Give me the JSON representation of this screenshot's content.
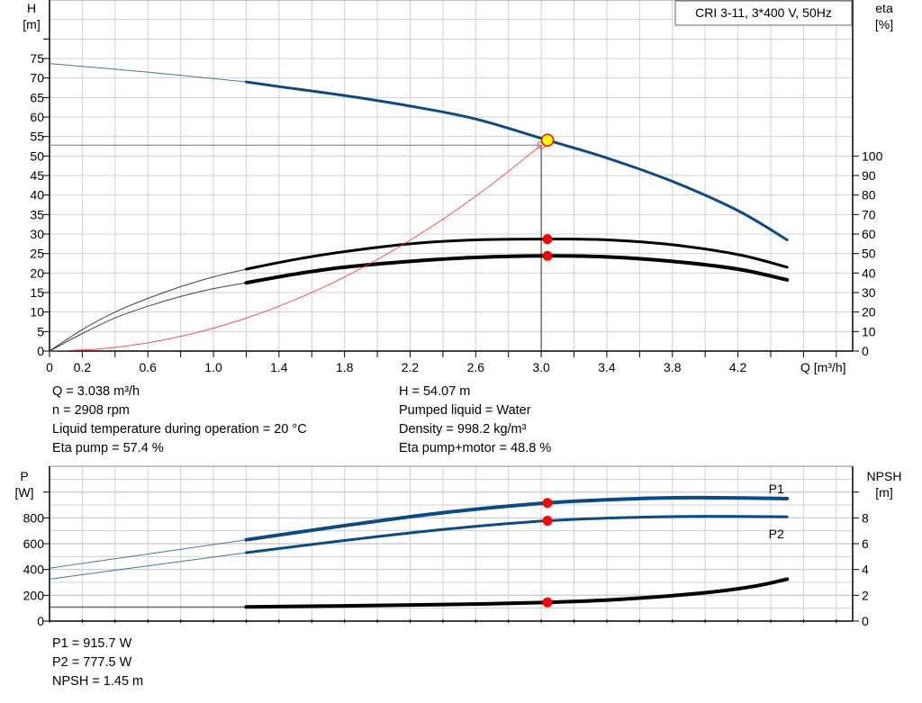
{
  "chart_data": [
    {
      "type": "line",
      "title": "CRI 3-11, 3*400 V, 50Hz",
      "xlabel": "Q [m³/h]",
      "ylabel": "H [m]",
      "ylabel_lines": [
        "H",
        "[m]"
      ],
      "y2label_lines": [
        "eta",
        "[%]"
      ],
      "xlim": [
        0,
        4.9
      ],
      "ylim": [
        0,
        90
      ],
      "y2lim": [
        0,
        180
      ],
      "grid": true,
      "x_ticks": [
        0,
        0.2,
        0.6,
        1.0,
        1.4,
        1.8,
        2.2,
        2.6,
        3.0,
        3.4,
        3.8,
        4.2
      ],
      "x_tick_labels": [
        "0",
        "0.2",
        "0.6",
        "1.0",
        "1.4",
        "1.8",
        "2.2",
        "2.6",
        "3.0",
        "3.4",
        "3.8",
        "4.2"
      ],
      "y_ticks": [
        0,
        5,
        10,
        15,
        20,
        25,
        30,
        35,
        40,
        45,
        50,
        55,
        60,
        65,
        70,
        75
      ],
      "y_tick_labels": [
        "0",
        "5",
        "10",
        "15",
        "20",
        "25",
        "30",
        "35",
        "40",
        "45",
        "50",
        "55",
        "60",
        "65",
        "70",
        "75"
      ],
      "y2_ticks": [
        0,
        10,
        20,
        30,
        40,
        50,
        60,
        70,
        80,
        90,
        100
      ],
      "y2_tick_labels": [
        "0",
        "10",
        "20",
        "30",
        "40",
        "50",
        "60",
        "70",
        "80",
        "90",
        "100"
      ],
      "series": [
        {
          "key": "head",
          "axis": "H",
          "color": "#0b4a85",
          "x": [
            0,
            0.6,
            1.2,
            1.4,
            1.8,
            2.2,
            2.6,
            3.038,
            3.4,
            3.8,
            4.2,
            4.5
          ],
          "y": [
            73.7,
            71.5,
            69.0,
            67.8,
            65.5,
            62.8,
            59.5,
            54.07,
            49.5,
            43.5,
            36.0,
            28.5
          ]
        },
        {
          "key": "eta-pump",
          "axis": "eta",
          "color": "#000000",
          "x": [
            0,
            0.2,
            0.4,
            0.6,
            0.8,
            1.0,
            1.2,
            1.5,
            1.8,
            2.2,
            2.6,
            3.038,
            3.4,
            3.8,
            4.2,
            4.5
          ],
          "y": [
            0,
            11,
            20,
            27,
            33,
            38,
            42,
            47,
            51,
            55,
            57,
            57.4,
            57,
            54.5,
            49.5,
            43
          ]
        },
        {
          "key": "eta-pump-motor",
          "axis": "eta",
          "color": "#000000",
          "x": [
            0,
            0.2,
            0.4,
            0.6,
            0.8,
            1.0,
            1.2,
            1.5,
            1.8,
            2.2,
            2.6,
            3.038,
            3.4,
            3.8,
            4.2,
            4.5
          ],
          "y": [
            0,
            9,
            17,
            23,
            28,
            32,
            35,
            39.5,
            43,
            46,
            48,
            48.8,
            48.3,
            46,
            42,
            36.5
          ]
        },
        {
          "key": "system-curve",
          "axis": "H",
          "color": "#ff3030",
          "x": [
            0,
            0.3,
            0.6,
            0.9,
            1.2,
            1.5,
            1.8,
            2.1,
            2.4,
            2.7,
            3.0
          ],
          "y": [
            0,
            0.53,
            2.11,
            4.75,
            8.45,
            13.2,
            19.0,
            25.9,
            33.8,
            42.8,
            52.8
          ]
        }
      ],
      "duty_point": {
        "Q": 3.038,
        "H": 54.07,
        "eta_pump": 57.4,
        "eta_pump_motor": 48.8
      },
      "system_end": {
        "Q": 3.0,
        "H": 52.8
      },
      "thin_until_Q": 1.2
    },
    {
      "type": "line",
      "xlim": [
        0,
        4.9
      ],
      "ylim": [
        0,
        1200
      ],
      "y2lim": [
        0,
        12
      ],
      "grid": true,
      "ylabel_lines": [
        "P",
        "[W]"
      ],
      "y2label_lines": [
        "NPSH",
        "[m]"
      ],
      "y_ticks": [
        0,
        200,
        400,
        600,
        800
      ],
      "y_tick_labels": [
        "0",
        "200",
        "400",
        "600",
        "800"
      ],
      "y2_ticks": [
        0,
        2,
        4,
        6,
        8
      ],
      "y2_tick_labels": [
        "0",
        "2",
        "4",
        "6",
        "8"
      ],
      "series": [
        {
          "key": "p1",
          "name": "P1",
          "axis": "P",
          "color": "#0b4a85",
          "x": [
            0,
            0.6,
            1.2,
            1.8,
            2.4,
            3.038,
            3.6,
            4.0,
            4.5
          ],
          "y": [
            410,
            520,
            630,
            740,
            840,
            915.7,
            950,
            957,
            950
          ]
        },
        {
          "key": "p2",
          "name": "P2",
          "axis": "P",
          "color": "#0b4a85",
          "x": [
            0,
            0.6,
            1.2,
            1.8,
            2.4,
            3.038,
            3.6,
            4.0,
            4.5
          ],
          "y": [
            325,
            428,
            530,
            625,
            710,
            777.5,
            805,
            812,
            808
          ]
        },
        {
          "key": "npsh",
          "axis": "NPSH",
          "color": "#000000",
          "x": [
            0,
            1.2,
            1.8,
            2.4,
            3.038,
            3.5,
            4.0,
            4.3,
            4.5
          ],
          "y": [
            1.1,
            1.1,
            1.18,
            1.28,
            1.45,
            1.7,
            2.2,
            2.7,
            3.25
          ]
        }
      ],
      "duty_point": {
        "Q": 3.038,
        "P1": 915.7,
        "P2": 777.5,
        "NPSH": 1.45
      },
      "thin_until_Q": 1.2
    }
  ],
  "colors": {
    "duty_marker_fill": "#ffff00",
    "marker": "#ff0000",
    "head": "#0b4a85",
    "grid": "#d0d0d0"
  },
  "info_top": {
    "left": [
      "Q = 3.038 m³/h",
      "n = 2908 rpm",
      "Liquid temperature during operation = 20 °C",
      "Eta pump = 57.4 %"
    ],
    "right": [
      "H = 54.07 m",
      "Pumped liquid = Water",
      "Density = 998.2 kg/m³",
      "Eta pump+motor = 48.8 %"
    ]
  },
  "info_bottom": [
    "P1 = 915.7 W",
    "P2 = 777.5 W",
    "NPSH = 1.45 m"
  ]
}
